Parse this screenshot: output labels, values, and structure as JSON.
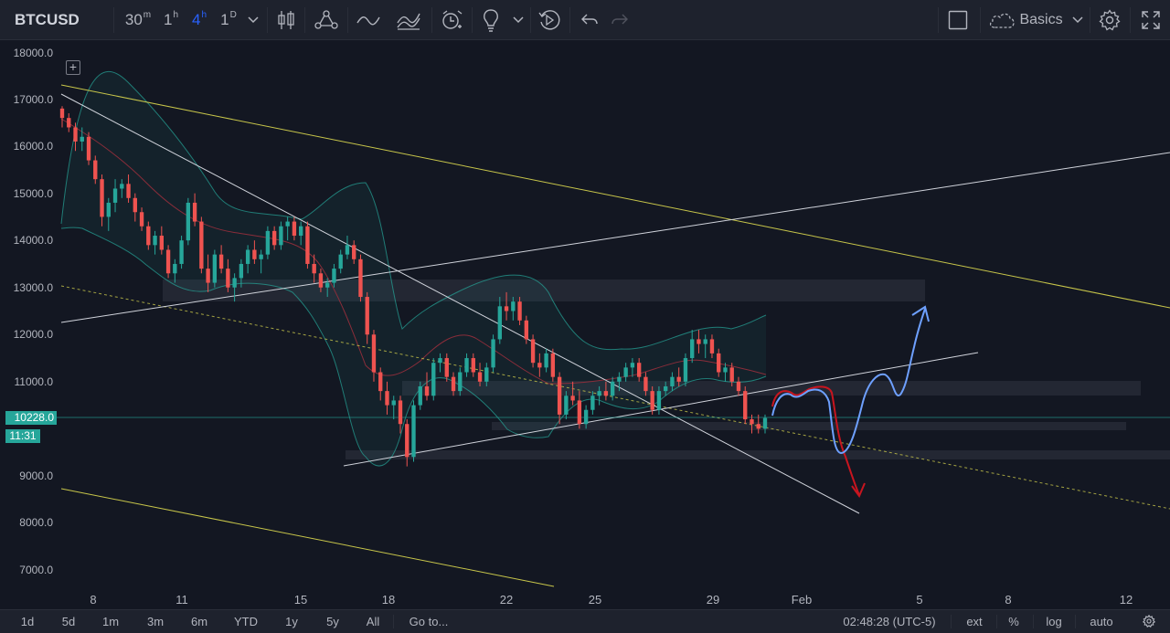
{
  "toolbar": {
    "symbol": "BTCUSD",
    "intervals": [
      {
        "value": "30",
        "unit": "m"
      },
      {
        "value": "1",
        "unit": "h"
      },
      {
        "value": "4",
        "unit": "h"
      },
      {
        "value": "1",
        "unit": "D"
      }
    ],
    "active_interval": "4h",
    "layout_name": "Basics",
    "icons": [
      "chevron-down-icon",
      "candles-icon",
      "indicators-icon",
      "line-icon",
      "compare-icon",
      "alert-icon",
      "idea-icon",
      "replay-icon",
      "undo-icon",
      "redo-icon",
      "layout-square-icon",
      "cloud-icon",
      "gear-icon",
      "fullscreen-icon"
    ],
    "accent_color": "#2962ff"
  },
  "price_axis": {
    "labels": [
      "18000.0",
      "17000.0",
      "16000.0",
      "15000.0",
      "14000.0",
      "13000.0",
      "12000.0",
      "11000.0",
      "9000.0",
      "8000.0",
      "7000.0"
    ],
    "last_price": "10228.0",
    "countdown": "11:31",
    "last_price_color": "#26a69a"
  },
  "time_axis": {
    "labels": [
      "8",
      "11",
      "15",
      "18",
      "22",
      "25",
      "29",
      "Feb",
      "5",
      "8",
      "12"
    ]
  },
  "bottom_bar": {
    "ranges": [
      "1d",
      "5d",
      "1m",
      "3m",
      "6m",
      "YTD",
      "1y",
      "5y",
      "All"
    ],
    "goto": "Go to...",
    "clock": "02:48:28 (UTC-5)",
    "options": [
      "ext",
      "%",
      "log",
      "auto"
    ]
  },
  "chart_data": {
    "type": "candlestick",
    "title": "",
    "ylim": [
      6700,
      18100
    ],
    "grid": false,
    "colors": {
      "up": "#26a69a",
      "down": "#ef5350",
      "trendline": "#d1d4dc",
      "channel": "#c8c64a",
      "bands": "#26a69a",
      "ma": "#8a2d3a"
    },
    "ohlc": [
      [
        16800,
        16850,
        16400,
        16600
      ],
      [
        16600,
        16700,
        16300,
        16400
      ],
      [
        16400,
        16500,
        15900,
        16100
      ],
      [
        16100,
        16400,
        15900,
        16200
      ],
      [
        16200,
        16300,
        15600,
        15700
      ],
      [
        15700,
        15800,
        15200,
        15300
      ],
      [
        15300,
        15400,
        14300,
        14500
      ],
      [
        14500,
        14900,
        14200,
        14800
      ],
      [
        14800,
        15300,
        14600,
        15100
      ],
      [
        15100,
        15300,
        14900,
        15200
      ],
      [
        15200,
        15400,
        14800,
        14900
      ],
      [
        14900,
        15000,
        14400,
        14600
      ],
      [
        14600,
        14700,
        14200,
        14300
      ],
      [
        14300,
        14400,
        13800,
        13900
      ],
      [
        13900,
        14200,
        13700,
        14100
      ],
      [
        14100,
        14300,
        13700,
        13800
      ],
      [
        13800,
        13900,
        13200,
        13300
      ],
      [
        13300,
        13600,
        13100,
        13500
      ],
      [
        13500,
        14100,
        13400,
        14000
      ],
      [
        14000,
        14900,
        13900,
        14800
      ],
      [
        14800,
        15000,
        14300,
        14400
      ],
      [
        14400,
        14500,
        13300,
        13400
      ],
      [
        13400,
        13700,
        12900,
        13100
      ],
      [
        13100,
        13800,
        13000,
        13700
      ],
      [
        13700,
        13900,
        13300,
        13400
      ],
      [
        13400,
        13600,
        12900,
        13000
      ],
      [
        13000,
        13300,
        12700,
        13200
      ],
      [
        13200,
        13600,
        13000,
        13500
      ],
      [
        13500,
        13900,
        13300,
        13800
      ],
      [
        13800,
        14000,
        13500,
        13600
      ],
      [
        13600,
        13800,
        13300,
        13700
      ],
      [
        13700,
        14300,
        13600,
        14200
      ],
      [
        14200,
        14300,
        13800,
        13900
      ],
      [
        13900,
        14400,
        13800,
        14300
      ],
      [
        14300,
        14500,
        14000,
        14400
      ],
      [
        14400,
        14500,
        14000,
        14100
      ],
      [
        14100,
        14400,
        13900,
        14300
      ],
      [
        14300,
        14400,
        13400,
        13500
      ],
      [
        13500,
        13700,
        13100,
        13300
      ],
      [
        13300,
        13400,
        12900,
        13000
      ],
      [
        13000,
        13200,
        12800,
        13100
      ],
      [
        13100,
        13500,
        13000,
        13400
      ],
      [
        13400,
        13800,
        13300,
        13700
      ],
      [
        13700,
        14100,
        13600,
        13900
      ],
      [
        13900,
        14000,
        13500,
        13600
      ],
      [
        13600,
        13700,
        12700,
        12800
      ],
      [
        12800,
        12900,
        11800,
        12000
      ],
      [
        12000,
        12100,
        11000,
        11200
      ],
      [
        11200,
        11300,
        10600,
        10800
      ],
      [
        10800,
        11000,
        10300,
        10500
      ],
      [
        10500,
        10700,
        10200,
        10600
      ],
      [
        10600,
        10700,
        9900,
        10100
      ],
      [
        10100,
        10200,
        9200,
        9400
      ],
      [
        9400,
        10600,
        9300,
        10500
      ],
      [
        10500,
        11000,
        10400,
        10900
      ],
      [
        10900,
        11200,
        10600,
        10700
      ],
      [
        10700,
        11500,
        10600,
        11400
      ],
      [
        11400,
        11600,
        11200,
        11500
      ],
      [
        11500,
        11600,
        11000,
        11100
      ],
      [
        11100,
        11200,
        10700,
        10800
      ],
      [
        10800,
        11300,
        10700,
        11200
      ],
      [
        11200,
        11600,
        11100,
        11500
      ],
      [
        11500,
        11600,
        11100,
        11200
      ],
      [
        11200,
        11400,
        10900,
        11000
      ],
      [
        11000,
        11400,
        10900,
        11300
      ],
      [
        11300,
        12000,
        11200,
        11900
      ],
      [
        11900,
        12800,
        11800,
        12600
      ],
      [
        12600,
        12900,
        12300,
        12500
      ],
      [
        12500,
        12800,
        12300,
        12700
      ],
      [
        12700,
        12800,
        12200,
        12300
      ],
      [
        12300,
        12400,
        11800,
        11900
      ],
      [
        11900,
        12000,
        11300,
        11400
      ],
      [
        11400,
        11600,
        11100,
        11300
      ],
      [
        11300,
        11700,
        11200,
        11600
      ],
      [
        11600,
        11700,
        11000,
        11100
      ],
      [
        11100,
        11200,
        10100,
        10300
      ],
      [
        10300,
        10800,
        10200,
        10700
      ],
      [
        10700,
        11000,
        10500,
        10600
      ],
      [
        10600,
        10800,
        10000,
        10100
      ],
      [
        10100,
        10500,
        10000,
        10400
      ],
      [
        10400,
        10800,
        10300,
        10700
      ],
      [
        10700,
        10900,
        10500,
        10800
      ],
      [
        10800,
        11000,
        10600,
        10700
      ],
      [
        10700,
        11100,
        10600,
        11000
      ],
      [
        11000,
        11200,
        10800,
        11100
      ],
      [
        11100,
        11400,
        11000,
        11300
      ],
      [
        11300,
        11500,
        11100,
        11400
      ],
      [
        11400,
        11500,
        11000,
        11100
      ],
      [
        11100,
        11200,
        10700,
        10800
      ],
      [
        10800,
        10900,
        10300,
        10400
      ],
      [
        10400,
        10900,
        10300,
        10800
      ],
      [
        10800,
        11000,
        10700,
        10900
      ],
      [
        10900,
        11200,
        10800,
        11100
      ],
      [
        11100,
        11300,
        10900,
        11000
      ],
      [
        11000,
        11600,
        10900,
        11500
      ],
      [
        11500,
        12100,
        11400,
        11900
      ],
      [
        11900,
        12100,
        11600,
        11800
      ],
      [
        11800,
        12000,
        11500,
        11900
      ],
      [
        11900,
        12000,
        11500,
        11600
      ],
      [
        11600,
        11700,
        11100,
        11200
      ],
      [
        11200,
        11400,
        11000,
        11300
      ],
      [
        11300,
        11400,
        10900,
        11000
      ],
      [
        11000,
        11100,
        10700,
        10800
      ],
      [
        10800,
        10900,
        10100,
        10200
      ],
      [
        10200,
        10300,
        9900,
        10100
      ],
      [
        10100,
        10300,
        9900,
        10000
      ],
      [
        10000,
        10300,
        9900,
        10228
      ]
    ]
  }
}
